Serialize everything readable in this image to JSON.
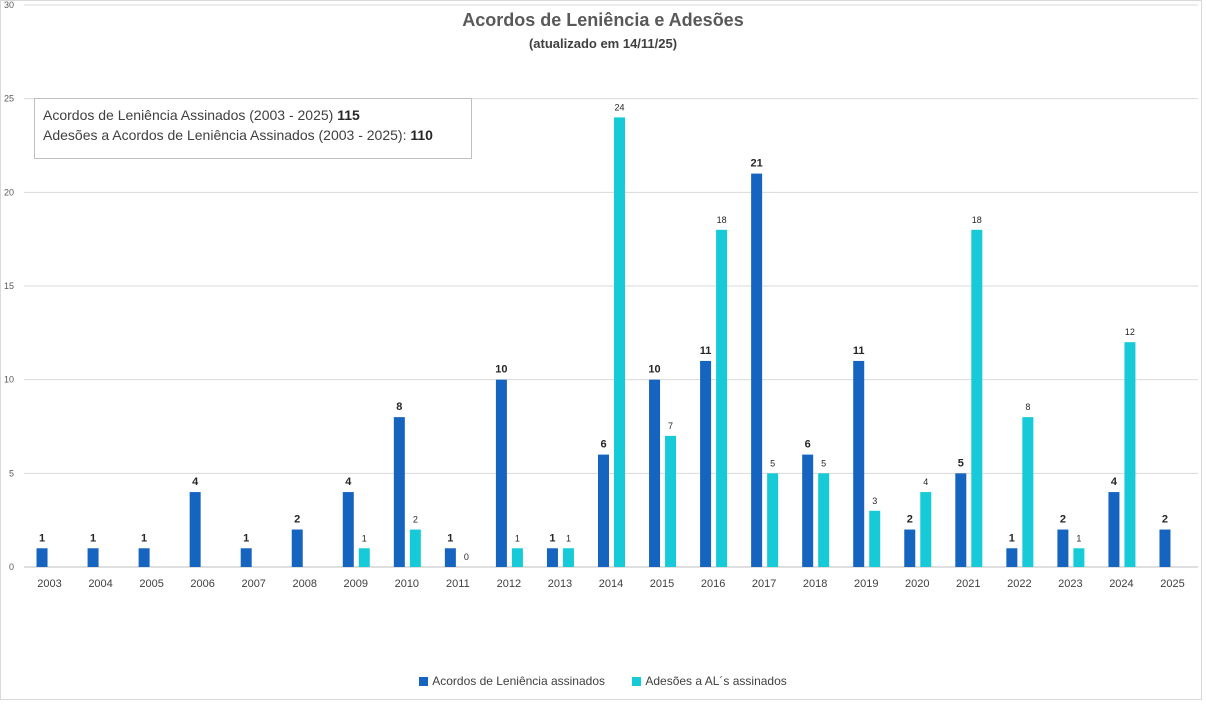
{
  "chart_data": {
    "type": "bar",
    "title": "Acordos de Leniência e Adesões",
    "subtitle": "(atualizado em 14/11/25)",
    "ylim": [
      0,
      30
    ],
    "yticks": [
      0,
      5,
      10,
      15,
      20,
      25,
      30
    ],
    "grid": true,
    "legend_position": "bottom",
    "categories": [
      "2003",
      "2004",
      "2005",
      "2006",
      "2007",
      "2008",
      "2009",
      "2010",
      "2011",
      "2012",
      "2013",
      "2014",
      "2015",
      "2016",
      "2017",
      "2018",
      "2019",
      "2020",
      "2021",
      "2022",
      "2023",
      "2024",
      "2025"
    ],
    "series": [
      {
        "name": "Acordos de Leniência assinados",
        "color": "#1565c0",
        "values": [
          1,
          1,
          1,
          4,
          1,
          2,
          4,
          8,
          1,
          10,
          1,
          6,
          10,
          11,
          21,
          6,
          11,
          2,
          5,
          1,
          2,
          4,
          2
        ]
      },
      {
        "name": "Adesões a AL´s assinados",
        "color": "#17cad8",
        "values": [
          null,
          null,
          null,
          null,
          null,
          null,
          1,
          2,
          0,
          1,
          1,
          24,
          7,
          18,
          5,
          5,
          3,
          4,
          18,
          8,
          1,
          12,
          null
        ]
      }
    ]
  },
  "info_box": {
    "line1_label": "Acordos de Leniência Assinados (2003 - 2025)",
    "line1_value": "115",
    "line2_label": "Adesões a Acordos de Leniência Assinados (2003 - 2025):",
    "line2_value": "110"
  }
}
